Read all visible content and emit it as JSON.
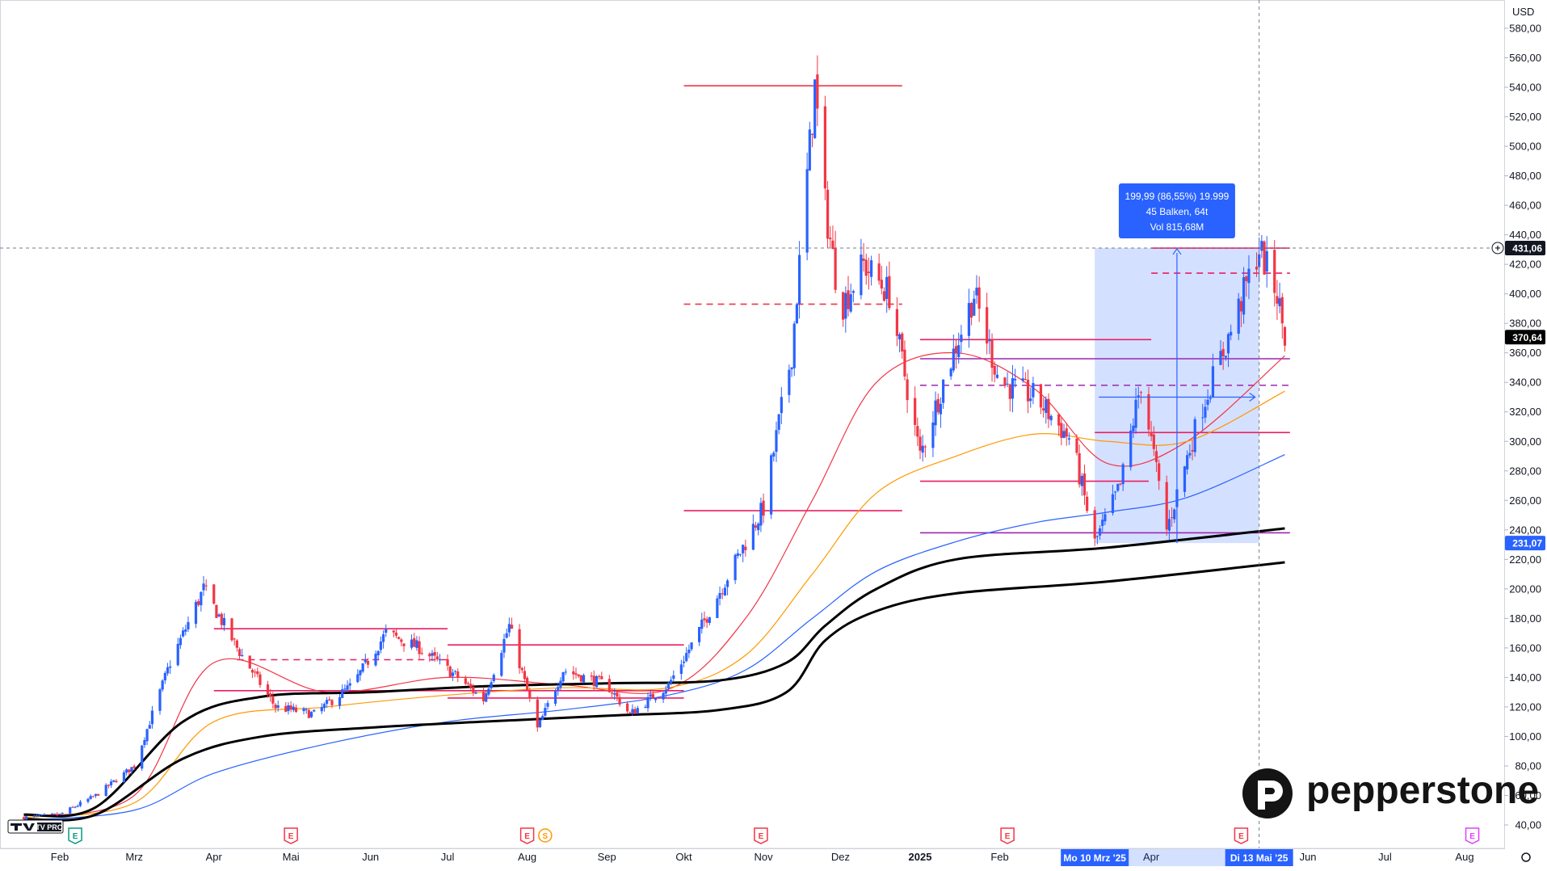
{
  "chart_data": {
    "type": "candlestick",
    "currency": "USD",
    "y_axis": {
      "ticks": [
        "40,00",
        "60,00",
        "80,00",
        "100,00",
        "120,00",
        "140,00",
        "160,00",
        "180,00",
        "200,00",
        "220,00",
        "240,00",
        "260,00",
        "280,00",
        "300,00",
        "320,00",
        "340,00",
        "360,00",
        "380,00",
        "400,00",
        "420,00",
        "440,00",
        "460,00",
        "480,00",
        "500,00",
        "520,00",
        "540,00",
        "560,00",
        "580,00"
      ],
      "ylim": [
        35,
        590
      ]
    },
    "x_axis": {
      "ticks": [
        {
          "label": "Feb",
          "date": "2024-02-01"
        },
        {
          "label": "Mrz",
          "date": "2024-03-01"
        },
        {
          "label": "Apr",
          "date": "2024-04-01"
        },
        {
          "label": "Mai",
          "date": "2024-05-01"
        },
        {
          "label": "Jun",
          "date": "2024-06-01"
        },
        {
          "label": "Jul",
          "date": "2024-07-01"
        },
        {
          "label": "Aug",
          "date": "2024-08-01"
        },
        {
          "label": "Sep",
          "date": "2024-09-01"
        },
        {
          "label": "Okt",
          "date": "2024-10-01"
        },
        {
          "label": "Nov",
          "date": "2024-11-01"
        },
        {
          "label": "Dez",
          "date": "2024-12-01"
        },
        {
          "label": "2025",
          "date": "2025-01-01"
        },
        {
          "label": "Feb",
          "date": "2025-02-01"
        },
        {
          "label": "Apr",
          "date": "2025-04-01"
        },
        {
          "label": "Jun",
          "date": "2025-06-01"
        },
        {
          "label": "Jul",
          "date": "2025-07-01"
        },
        {
          "label": "Aug",
          "date": "2025-08-01"
        }
      ],
      "range_start_label": "Mo 10 Mrz '25",
      "range_end_label": "Di 13 Mai '25"
    },
    "price_path": [
      [
        "2024-01-18",
        45
      ],
      [
        "2024-02-01",
        47
      ],
      [
        "2024-02-15",
        60
      ],
      [
        "2024-03-01",
        80
      ],
      [
        "2024-03-15",
        150
      ],
      [
        "2024-03-28",
        200
      ],
      [
        "2024-04-10",
        160
      ],
      [
        "2024-04-25",
        120
      ],
      [
        "2024-05-10",
        115
      ],
      [
        "2024-05-25",
        135
      ],
      [
        "2024-06-07",
        170
      ],
      [
        "2024-06-20",
        160
      ],
      [
        "2024-07-05",
        140
      ],
      [
        "2024-07-15",
        125
      ],
      [
        "2024-07-25",
        175
      ],
      [
        "2024-08-05",
        105
      ],
      [
        "2024-08-15",
        145
      ],
      [
        "2024-09-01",
        135
      ],
      [
        "2024-09-10",
        115
      ],
      [
        "2024-09-25",
        135
      ],
      [
        "2024-10-05",
        165
      ],
      [
        "2024-10-20",
        215
      ],
      [
        "2024-11-01",
        255
      ],
      [
        "2024-11-12",
        360
      ],
      [
        "2024-11-21",
        540
      ],
      [
        "2024-11-25",
        460
      ],
      [
        "2024-12-01",
        390
      ],
      [
        "2024-12-10",
        420
      ],
      [
        "2024-12-20",
        400
      ],
      [
        "2025-01-01",
        290
      ],
      [
        "2025-01-10",
        340
      ],
      [
        "2025-01-22",
        400
      ],
      [
        "2025-02-01",
        340
      ],
      [
        "2025-02-15",
        330
      ],
      [
        "2025-03-01",
        300
      ],
      [
        "2025-03-10",
        231
      ],
      [
        "2025-03-20",
        270
      ],
      [
        "2025-03-28",
        340
      ],
      [
        "2025-04-07",
        240
      ],
      [
        "2025-04-20",
        320
      ],
      [
        "2025-05-01",
        370
      ],
      [
        "2025-05-13",
        431
      ],
      [
        "2025-05-20",
        400
      ],
      [
        "2025-05-23",
        370.64
      ]
    ],
    "moving_averages": [
      {
        "color": "#f23645",
        "points": [
          [
            "2024-01-18",
            46
          ],
          [
            "2024-03-01",
            60
          ],
          [
            "2024-04-01",
            150
          ],
          [
            "2024-05-15",
            130
          ],
          [
            "2024-07-01",
            140
          ],
          [
            "2024-08-15",
            135
          ],
          [
            "2024-09-25",
            132
          ],
          [
            "2024-10-25",
            180
          ],
          [
            "2024-11-20",
            260
          ],
          [
            "2024-12-15",
            340
          ],
          [
            "2025-01-15",
            360
          ],
          [
            "2025-02-15",
            335
          ],
          [
            "2025-03-15",
            285
          ],
          [
            "2025-04-15",
            300
          ],
          [
            "2025-05-23",
            358
          ]
        ]
      },
      {
        "color": "#ff9800",
        "points": [
          [
            "2024-01-18",
            45
          ],
          [
            "2024-03-01",
            55
          ],
          [
            "2024-04-01",
            110
          ],
          [
            "2024-05-15",
            120
          ],
          [
            "2024-07-01",
            128
          ],
          [
            "2024-08-15",
            133
          ],
          [
            "2024-09-25",
            133
          ],
          [
            "2024-10-25",
            155
          ],
          [
            "2024-11-20",
            210
          ],
          [
            "2024-12-15",
            265
          ],
          [
            "2025-01-15",
            290
          ],
          [
            "2025-02-15",
            305
          ],
          [
            "2025-03-15",
            300
          ],
          [
            "2025-04-15",
            300
          ],
          [
            "2025-05-23",
            334
          ]
        ]
      },
      {
        "color": "#2962ff",
        "points": [
          [
            "2024-01-18",
            43
          ],
          [
            "2024-03-01",
            50
          ],
          [
            "2024-04-01",
            75
          ],
          [
            "2024-05-15",
            95
          ],
          [
            "2024-07-01",
            110
          ],
          [
            "2024-08-15",
            118
          ],
          [
            "2024-09-25",
            128
          ],
          [
            "2024-10-25",
            145
          ],
          [
            "2024-11-20",
            180
          ],
          [
            "2024-12-15",
            212
          ],
          [
            "2025-01-15",
            232
          ],
          [
            "2025-02-15",
            245
          ],
          [
            "2025-03-15",
            252
          ],
          [
            "2025-04-15",
            262
          ],
          [
            "2025-05-23",
            291
          ]
        ]
      },
      {
        "color": "#000000",
        "width": 3,
        "points": [
          [
            "2024-01-18",
            47
          ],
          [
            "2024-02-15",
            52
          ],
          [
            "2024-03-20",
            110
          ],
          [
            "2024-04-20",
            127
          ],
          [
            "2024-06-01",
            130
          ],
          [
            "2024-07-15",
            134
          ],
          [
            "2024-09-01",
            136
          ],
          [
            "2024-10-15",
            138
          ],
          [
            "2024-11-10",
            150
          ],
          [
            "2024-11-25",
            175
          ],
          [
            "2024-12-15",
            200
          ],
          [
            "2025-01-15",
            220
          ],
          [
            "2025-03-15",
            228
          ],
          [
            "2025-05-23",
            241
          ]
        ]
      },
      {
        "color": "#000000",
        "width": 3,
        "points": [
          [
            "2024-01-18",
            44
          ],
          [
            "2024-02-15",
            47
          ],
          [
            "2024-03-20",
            85
          ],
          [
            "2024-04-20",
            100
          ],
          [
            "2024-06-01",
            106
          ],
          [
            "2024-07-15",
            110
          ],
          [
            "2024-09-01",
            114
          ],
          [
            "2024-10-15",
            118
          ],
          [
            "2024-11-10",
            130
          ],
          [
            "2024-11-25",
            165
          ],
          [
            "2024-12-15",
            185
          ],
          [
            "2025-01-15",
            197
          ],
          [
            "2025-03-15",
            205
          ],
          [
            "2025-05-23",
            218
          ]
        ]
      }
    ],
    "horizontal_levels": [
      {
        "price": 541,
        "from": "2024-10-01",
        "to": "2024-12-25",
        "color": "#f23645",
        "style": "solid"
      },
      {
        "price": 393,
        "from": "2024-10-01",
        "to": "2024-12-25",
        "color": "#f23645",
        "style": "dashed"
      },
      {
        "price": 253,
        "from": "2024-10-01",
        "to": "2024-12-25",
        "color": "#e91e63",
        "style": "solid"
      },
      {
        "price": 173,
        "from": "2024-04-01",
        "to": "2024-07-01",
        "color": "#e91e63",
        "style": "solid"
      },
      {
        "price": 152,
        "from": "2024-04-10",
        "to": "2024-07-01",
        "color": "#e91e63",
        "style": "dashed"
      },
      {
        "price": 162,
        "from": "2024-07-01",
        "to": "2024-10-01",
        "color": "#e91e63",
        "style": "solid"
      },
      {
        "price": 131,
        "from": "2024-04-01",
        "to": "2024-10-01",
        "color": "#e91e63",
        "style": "solid"
      },
      {
        "price": 126,
        "from": "2024-07-01",
        "to": "2024-10-01",
        "color": "#e91e63",
        "style": "solid"
      },
      {
        "price": 369,
        "from": "2025-01-01",
        "to": "2025-04-01",
        "color": "#e91e63",
        "style": "solid"
      },
      {
        "price": 356,
        "from": "2025-01-01",
        "to": "2025-05-25",
        "color": "#9c27b0",
        "style": "solid"
      },
      {
        "price": 338,
        "from": "2025-01-01",
        "to": "2025-05-25",
        "color": "#9c27b0",
        "style": "dashed"
      },
      {
        "price": 306,
        "from": "2025-03-10",
        "to": "2025-05-25",
        "color": "#e91e63",
        "style": "solid"
      },
      {
        "price": 273,
        "from": "2025-01-01",
        "to": "2025-03-31",
        "color": "#e91e63",
        "style": "solid"
      },
      {
        "price": 238,
        "from": "2025-01-01",
        "to": "2025-05-25",
        "color": "#9c27b0",
        "style": "solid"
      },
      {
        "price": 431,
        "from": "2025-04-01",
        "to": "2025-05-25",
        "color": "#e91e63",
        "style": "solid"
      },
      {
        "price": 414,
        "from": "2025-04-01",
        "to": "2025-05-25",
        "color": "#e91e63",
        "style": "dashed"
      }
    ],
    "measure": {
      "from_date": "2025-03-10",
      "to_date": "2025-05-13",
      "low": 231.07,
      "high": 431.06,
      "line1": "199,99 (86,55%) 19.999",
      "line2": "45 Balken, 64t",
      "line3": "Vol 815,68M"
    },
    "crosshair_price": 431.06,
    "crosshair_label": "431,06",
    "last_price": 370.64,
    "last_price_label": "370,64",
    "low_label": "231,07",
    "earnings_markers": [
      {
        "date": "2024-02-07",
        "letter": "E",
        "color": "#089981"
      },
      {
        "date": "2024-05-01",
        "letter": "E",
        "color": "#f23645"
      },
      {
        "date": "2024-08-01",
        "letter": "E",
        "color": "#f23645"
      },
      {
        "date": "2024-08-08",
        "letter": "S",
        "color": "#ff9800"
      },
      {
        "date": "2024-10-31",
        "letter": "E",
        "color": "#f23645"
      },
      {
        "date": "2025-02-04",
        "letter": "E",
        "color": "#f23645"
      },
      {
        "date": "2025-05-06",
        "letter": "E",
        "color": "#f23645"
      },
      {
        "date": "2025-08-04",
        "letter": "E",
        "color": "#e040fb"
      }
    ]
  },
  "brand": {
    "name": "pepperstone",
    "platform_logo": "TV PRO"
  }
}
